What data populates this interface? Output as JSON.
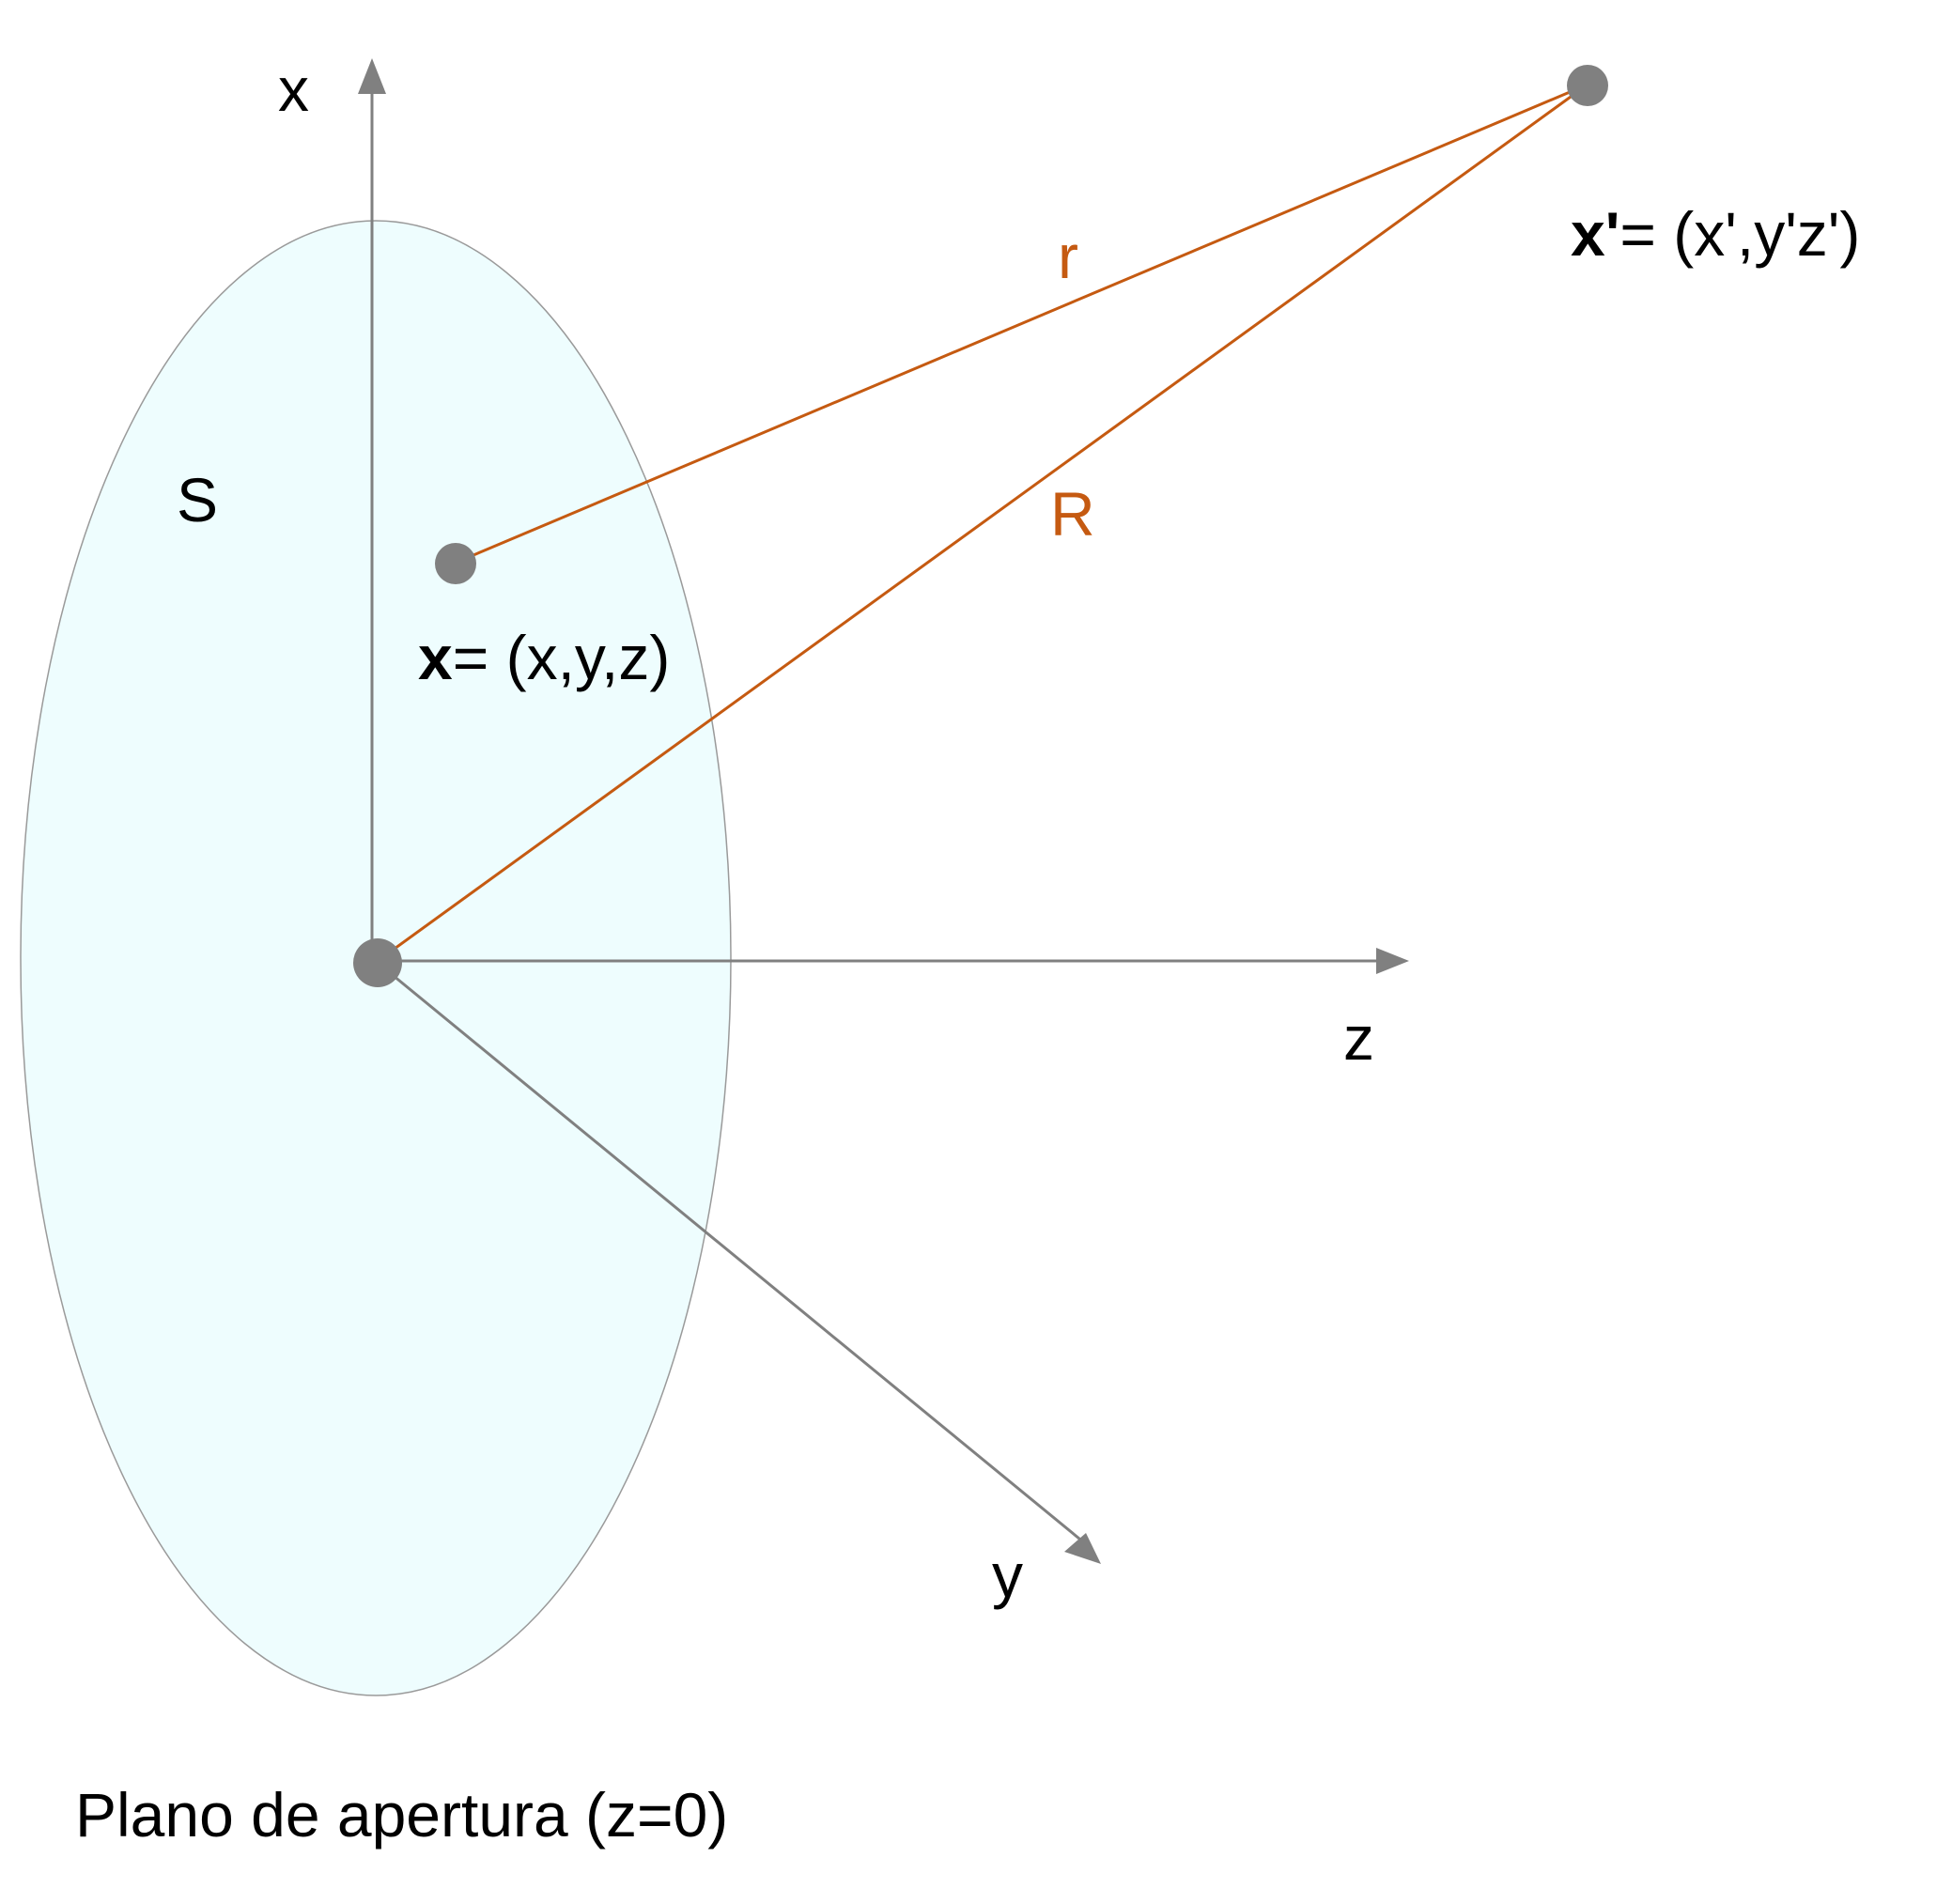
{
  "colors": {
    "axis": "#808080",
    "distance_line": "#C55A11",
    "aperture_fill": "#EEFDFE",
    "aperture_stroke": "#9A9A9A",
    "point": "#808080",
    "text": "#000000"
  },
  "axes": {
    "x_label": "x",
    "y_label": "y",
    "z_label": "z"
  },
  "aperture": {
    "label": "S",
    "caption": "Plano de apertura (z=0)"
  },
  "source_point": {
    "symbol": "x",
    "coords": "= (x,y,z)"
  },
  "observation_point": {
    "symbol": "x'",
    "coords": "= (x',y'z')"
  },
  "distances": {
    "r_label": "r",
    "R_label": "R"
  }
}
